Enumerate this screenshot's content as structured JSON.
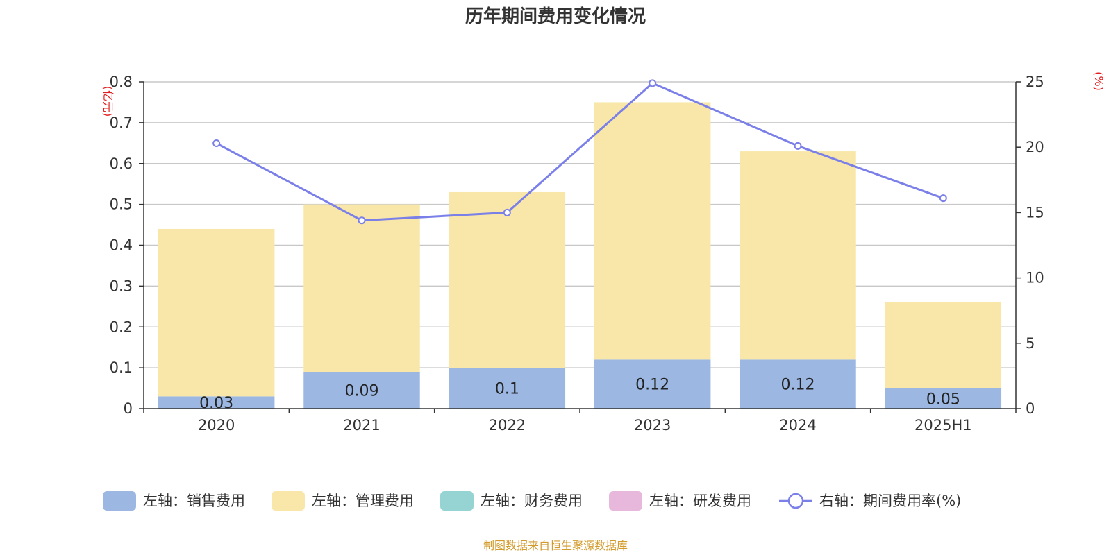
{
  "chart_data": {
    "type": "bar",
    "title": "历年期间费用变化情况",
    "categories": [
      "2020",
      "2021",
      "2022",
      "2023",
      "2024",
      "2025H1"
    ],
    "left_axis": {
      "unit": "(亿元)",
      "ylim": [
        0,
        0.8
      ],
      "ticks": [
        "0",
        "0.1",
        "0.2",
        "0.3",
        "0.4",
        "0.5",
        "0.6",
        "0.7",
        "0.8"
      ]
    },
    "right_axis": {
      "unit": "(%)",
      "ylim": [
        0,
        25
      ],
      "ticks": [
        "0",
        "5",
        "10",
        "15",
        "20",
        "25"
      ]
    },
    "series": [
      {
        "name": "左轴：销售费用",
        "type": "bar",
        "stack": "total",
        "color": "#9bb7e2",
        "values": [
          0.03,
          0.09,
          0.1,
          0.12,
          0.12,
          0.05
        ],
        "labels": [
          "0.03",
          "0.09",
          "0.1",
          "0.12",
          "0.12",
          "0.05"
        ]
      },
      {
        "name": "左轴：管理费用",
        "type": "bar",
        "stack": "total",
        "color": "#f8e7a8",
        "values": [
          0.41,
          0.41,
          0.43,
          0.63,
          0.51,
          0.21
        ]
      },
      {
        "name": "左轴：财务费用",
        "type": "bar",
        "stack": "total",
        "color": "#96d3d3",
        "values": [
          0,
          0,
          0,
          0,
          0,
          0
        ]
      },
      {
        "name": "左轴：研发费用",
        "type": "bar",
        "stack": "total",
        "color": "#e8b8dc",
        "values": [
          0,
          0,
          0,
          0,
          0,
          0
        ]
      },
      {
        "name": "右轴：期间费用率(%)",
        "type": "line",
        "axis": "right",
        "color": "#7b7fe8",
        "values": [
          20.3,
          14.4,
          15.0,
          24.9,
          20.1,
          16.1
        ]
      }
    ],
    "source": "制图数据来自恒生聚源数据库",
    "source_color": "#d29b2c",
    "unit_color": "#e02020"
  }
}
